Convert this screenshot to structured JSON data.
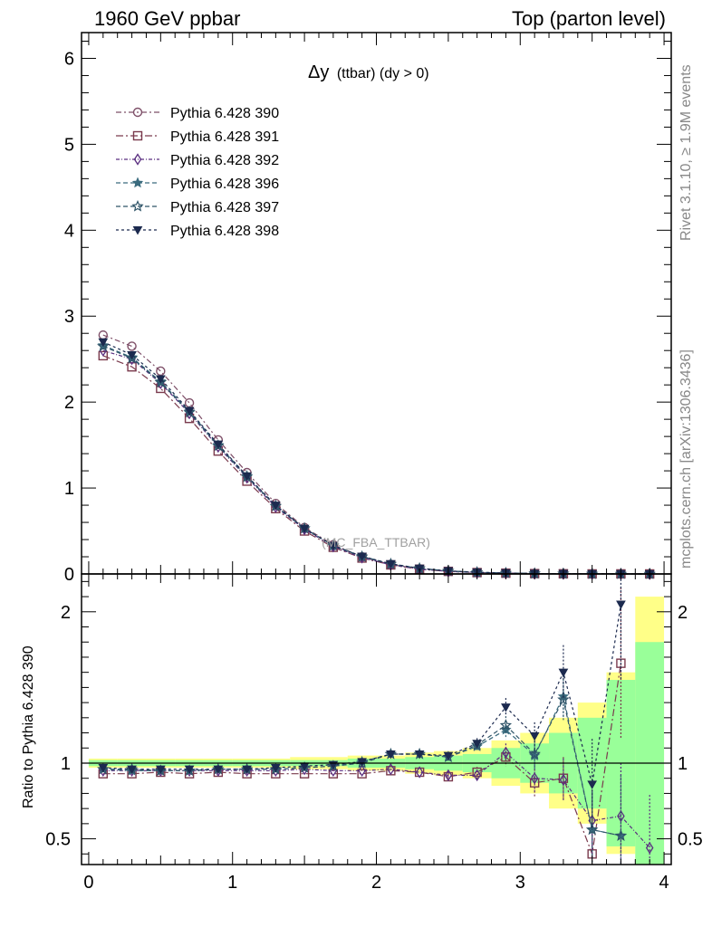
{
  "header": {
    "left": "1960 GeV ppbar",
    "right": "Top (parton level)"
  },
  "side": {
    "rivet": "Rivet 3.1.10, ≥ 1.9M events",
    "mcplots": "mcplots.cern.ch [arXiv:1306.3436]"
  },
  "chart_data": {
    "type": "line",
    "title": "Δy (ttbar) (dy > 0)",
    "title_main": "Δy",
    "title_sub": "(ttbar) (dy > 0)",
    "watermark": "(MC_FBA_TTBAR)",
    "xlim": [
      -0.05,
      4.05
    ],
    "xticks": [
      0,
      1,
      2,
      3,
      4
    ],
    "main": {
      "ylim": [
        0,
        6.3
      ],
      "yticks": [
        0,
        1,
        2,
        3,
        4,
        5,
        6
      ]
    },
    "ratio": {
      "ylabel": "Ratio to Pythia 6.428 390",
      "ylim": [
        0.33,
        2.25
      ],
      "yticks": [
        0.5,
        1,
        2
      ],
      "reference_line": 1
    },
    "x": [
      0.1,
      0.3,
      0.5,
      0.7,
      0.9,
      1.1,
      1.3,
      1.5,
      1.7,
      1.9,
      2.1,
      2.3,
      2.5,
      2.7,
      2.9,
      3.1,
      3.3,
      3.5,
      3.7,
      3.9
    ],
    "band": {
      "yellow": [
        0.03,
        0.03,
        0.03,
        0.03,
        0.03,
        0.03,
        0.03,
        0.04,
        0.04,
        0.05,
        0.05,
        0.07,
        0.08,
        0.1,
        0.15,
        0.2,
        0.3,
        0.4,
        0.6,
        1.1
      ],
      "green": [
        0.02,
        0.02,
        0.02,
        0.02,
        0.02,
        0.02,
        0.02,
        0.02,
        0.02,
        0.03,
        0.03,
        0.04,
        0.05,
        0.06,
        0.1,
        0.13,
        0.2,
        0.3,
        0.55,
        0.8
      ]
    },
    "series": [
      {
        "name": "Pythia 6.428 390",
        "color": "#7e4f68",
        "marker": "circle",
        "dash": "6,3,2,3",
        "values": [
          2.78,
          2.65,
          2.36,
          1.99,
          1.56,
          1.18,
          0.82,
          0.54,
          0.34,
          0.2,
          0.11,
          0.06,
          0.033,
          0.017,
          0.009,
          0.0045,
          0.0022,
          0.001,
          0.0005,
          0.0002
        ],
        "ratio": [
          1,
          1,
          1,
          1,
          1,
          1,
          1,
          1,
          1,
          1,
          1,
          1,
          1,
          1,
          1,
          1,
          1,
          1,
          1,
          1
        ],
        "ratio_err": [
          0,
          0,
          0,
          0,
          0,
          0,
          0,
          0,
          0,
          0,
          0,
          0,
          0,
          0,
          0,
          0,
          0,
          0,
          0,
          0
        ]
      },
      {
        "name": "Pythia 6.428 391",
        "color": "#7a3a4d",
        "marker": "square",
        "dash": "8,3,2,3",
        "values": [
          2.54,
          2.41,
          2.16,
          1.81,
          1.43,
          1.08,
          0.76,
          0.5,
          0.31,
          0.185,
          0.105,
          0.055,
          0.03,
          0.016,
          0.009,
          0.004,
          0.002,
          0.0004,
          0.0008,
          0.0001
        ],
        "ratio": [
          0.93,
          0.93,
          0.94,
          0.93,
          0.94,
          0.93,
          0.93,
          0.93,
          0.93,
          0.93,
          0.95,
          0.94,
          0.91,
          0.94,
          1.04,
          0.87,
          0.9,
          0.4,
          1.66,
          null
        ],
        "ratio_err": [
          0.005,
          0.005,
          0.005,
          0.005,
          0.005,
          0.005,
          0.006,
          0.008,
          0.01,
          0.012,
          0.015,
          0.02,
          0.025,
          0.035,
          0.06,
          0.09,
          0.14,
          0.25,
          0.5,
          0
        ]
      },
      {
        "name": "Pythia 6.428 392",
        "color": "#5a2f80",
        "marker": "diamond",
        "dash": "4,2,1,2",
        "values": [
          2.6,
          2.5,
          2.22,
          1.87,
          1.48,
          1.12,
          0.78,
          0.52,
          0.32,
          0.19,
          0.106,
          0.056,
          0.03,
          0.016,
          0.009,
          0.004,
          0.002,
          0.0006,
          0.0003,
          0.0001
        ],
        "ratio": [
          0.95,
          0.95,
          0.95,
          0.95,
          0.95,
          0.95,
          0.95,
          0.96,
          0.95,
          0.95,
          0.96,
          0.94,
          0.92,
          0.92,
          1.07,
          0.9,
          0.89,
          0.62,
          0.65,
          0.44
        ],
        "ratio_err": [
          0.005,
          0.005,
          0.005,
          0.005,
          0.005,
          0.005,
          0.006,
          0.008,
          0.01,
          0.012,
          0.015,
          0.02,
          0.025,
          0.035,
          0.06,
          0.09,
          0.14,
          0.25,
          0.35,
          0.35
        ]
      },
      {
        "name": "Pythia 6.428 396",
        "color": "#3a6b7e",
        "marker": "star",
        "dash": "5,3",
        "values": [
          2.66,
          2.52,
          2.24,
          1.89,
          1.5,
          1.14,
          0.79,
          0.53,
          0.33,
          0.205,
          0.117,
          0.065,
          0.035,
          0.019,
          0.011,
          0.005,
          0.003,
          0.0006,
          0.0003,
          0.0001
        ],
        "ratio": [
          0.96,
          0.95,
          0.95,
          0.95,
          0.96,
          0.96,
          0.96,
          0.97,
          0.98,
          1.01,
          1.06,
          1.06,
          1.04,
          1.11,
          1.22,
          1.05,
          1.44,
          0.56,
          0.52,
          null
        ],
        "ratio_err": [
          0.005,
          0.005,
          0.005,
          0.005,
          0.005,
          0.005,
          0.006,
          0.008,
          0.01,
          0.012,
          0.015,
          0.02,
          0.025,
          0.035,
          0.06,
          0.09,
          0.14,
          0.25,
          0.4,
          0
        ]
      },
      {
        "name": "Pythia 6.428 397",
        "color": "#2f5468",
        "marker": "star-open",
        "dash": "5,3",
        "values": [
          2.65,
          2.51,
          2.23,
          1.88,
          1.49,
          1.13,
          0.79,
          0.53,
          0.33,
          0.2,
          0.116,
          0.064,
          0.035,
          0.019,
          0.011,
          0.005,
          0.003,
          0.0006,
          0.0003,
          0.0001
        ],
        "ratio": [
          0.96,
          0.96,
          0.95,
          0.95,
          0.96,
          0.96,
          0.96,
          0.97,
          0.98,
          1.0,
          1.06,
          1.06,
          1.04,
          1.12,
          1.25,
          1.06,
          1.42,
          0.56,
          0.52,
          null
        ],
        "ratio_err": [
          0.005,
          0.005,
          0.005,
          0.005,
          0.005,
          0.005,
          0.006,
          0.008,
          0.01,
          0.012,
          0.015,
          0.02,
          0.025,
          0.035,
          0.06,
          0.09,
          0.14,
          0.25,
          0.4,
          0
        ]
      },
      {
        "name": "Pythia 6.428 398",
        "color": "#1c2a4f",
        "marker": "triangle-down",
        "dash": "3,3",
        "values": [
          2.7,
          2.55,
          2.27,
          1.9,
          1.51,
          1.14,
          0.8,
          0.53,
          0.33,
          0.205,
          0.118,
          0.066,
          0.036,
          0.02,
          0.012,
          0.0055,
          0.0035,
          0.0009,
          0.001,
          0.0001
        ],
        "ratio": [
          0.97,
          0.96,
          0.96,
          0.96,
          0.96,
          0.96,
          0.97,
          0.98,
          0.99,
          1.01,
          1.06,
          1.06,
          1.05,
          1.13,
          1.37,
          1.18,
          1.6,
          0.86,
          2.05,
          null
        ],
        "ratio_err": [
          0.005,
          0.005,
          0.005,
          0.005,
          0.005,
          0.005,
          0.006,
          0.008,
          0.01,
          0.012,
          0.015,
          0.02,
          0.025,
          0.035,
          0.06,
          0.09,
          0.18,
          0.3,
          0.5,
          0
        ]
      }
    ]
  }
}
